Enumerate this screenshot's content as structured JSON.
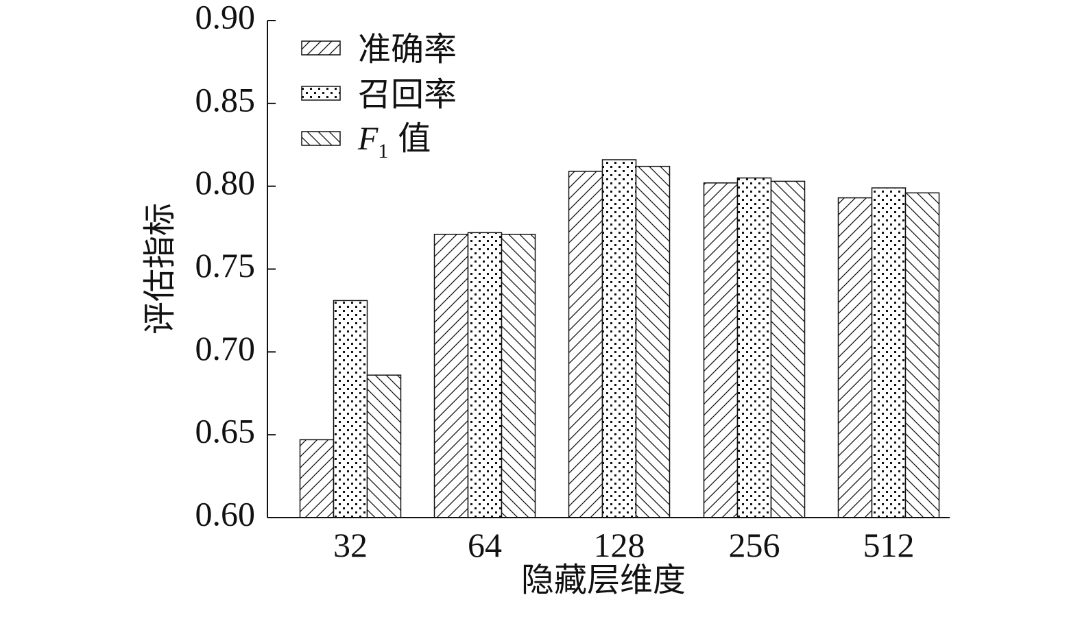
{
  "chart_data": {
    "type": "bar",
    "categories": [
      "32",
      "64",
      "128",
      "256",
      "512"
    ],
    "series": [
      {
        "name": "准确率",
        "values": [
          0.647,
          0.771,
          0.809,
          0.802,
          0.793
        ],
        "pattern": "diagonal-up"
      },
      {
        "name": "召回率",
        "values": [
          0.731,
          0.772,
          0.816,
          0.805,
          0.799
        ],
        "pattern": "dots"
      },
      {
        "name": "F1 值",
        "values": [
          0.686,
          0.771,
          0.812,
          0.803,
          0.796
        ],
        "pattern": "diagonal-down"
      }
    ],
    "legend_f1": {
      "main": "F",
      "sub": "1",
      "suffix": "值"
    },
    "xlabel": "隐藏层维度",
    "ylabel": "评估指标",
    "ylim": [
      0.6,
      0.9
    ],
    "yticks": [
      "0.60",
      "0.65",
      "0.70",
      "0.75",
      "0.80",
      "0.85",
      "0.90"
    ],
    "legend_position": "top-left",
    "grid": false,
    "colors": {
      "stroke": "#111111",
      "fill": "#ffffff"
    }
  }
}
